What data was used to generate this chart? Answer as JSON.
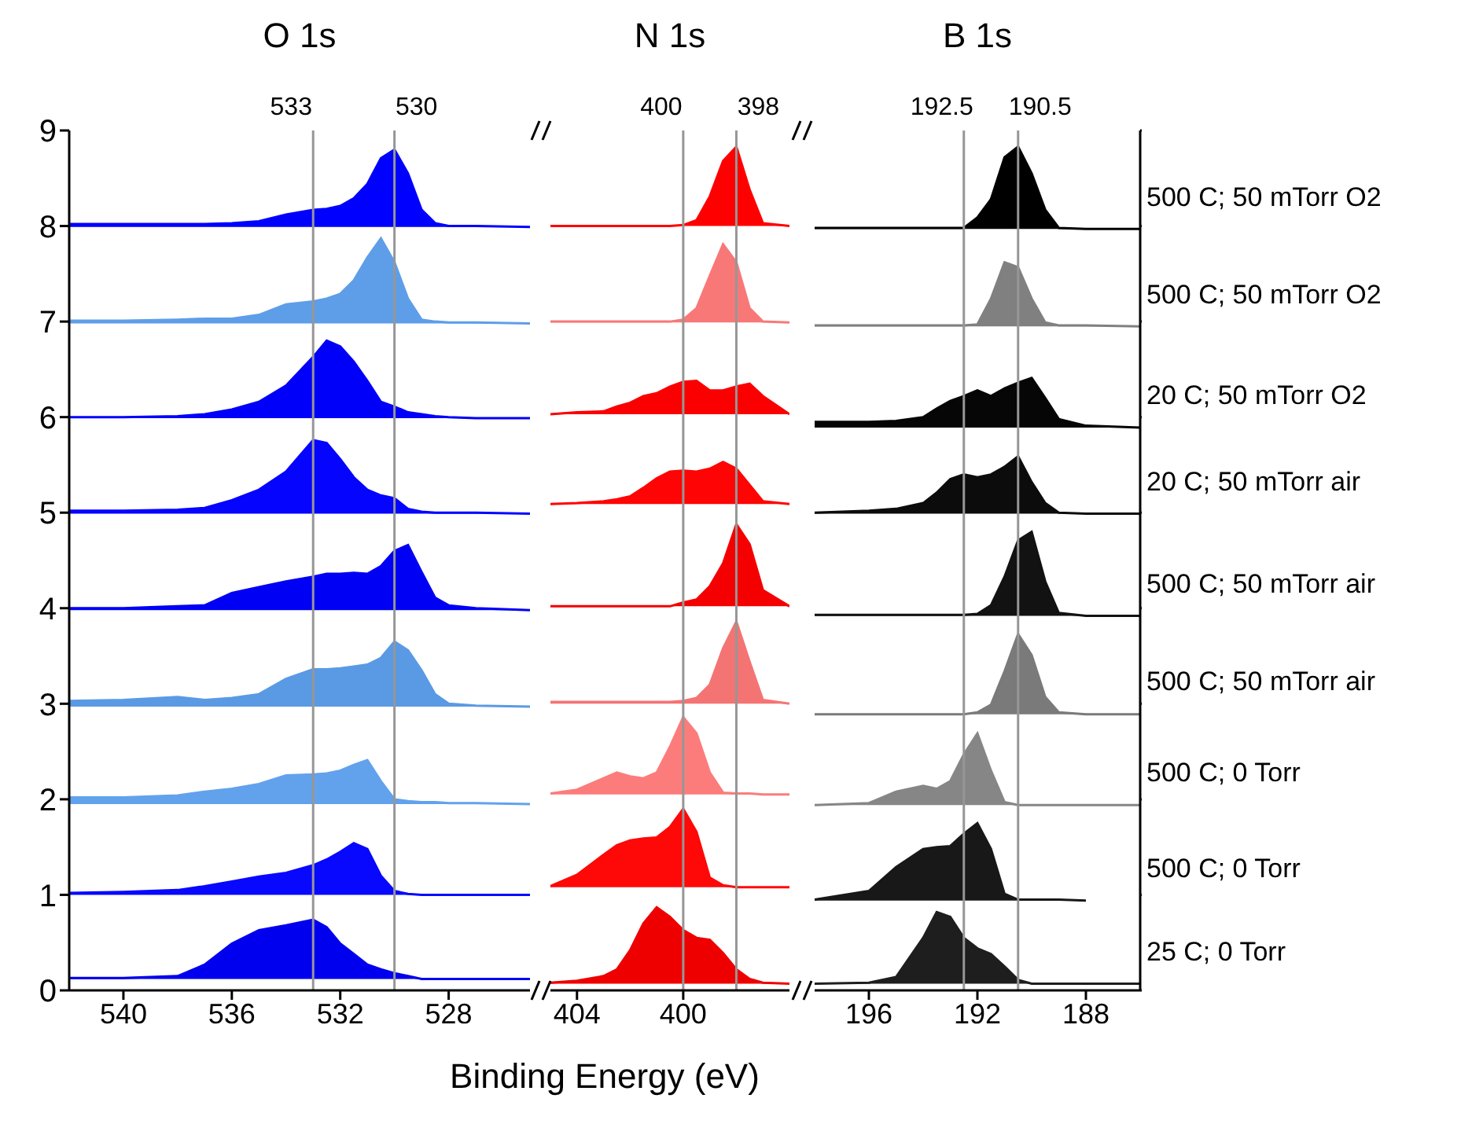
{
  "chart_data": [
    {
      "type": "area",
      "title": "O 1s",
      "xlim": [
        542,
        525
      ],
      "xticks": [
        540,
        536,
        532,
        528
      ],
      "ylim": [
        0,
        9
      ],
      "yticks": [
        0,
        1,
        2,
        3,
        4,
        5,
        6,
        7,
        8,
        9
      ],
      "x": [
        542,
        540,
        538,
        537,
        536,
        535,
        534,
        533,
        532.5,
        532,
        531.5,
        531,
        530.5,
        530,
        529.5,
        529,
        528.5,
        528,
        527,
        525
      ],
      "ref_lines": [
        {
          "axis": "x",
          "value": 533,
          "label": "533",
          "color": "#969696"
        },
        {
          "axis": "x",
          "value": 530,
          "label": "530",
          "color": "#969696"
        }
      ],
      "series": [
        {
          "color": "#0000ff",
          "values": [
            8.02,
            8.02,
            8.02,
            8.02,
            8.03,
            8.05,
            8.12,
            8.17,
            8.18,
            8.21,
            8.29,
            8.44,
            8.71,
            8.8,
            8.55,
            8.17,
            8.03,
            8.0,
            8.0,
            7.99
          ]
        },
        {
          "color": "#5e9ee8",
          "values": [
            7.01,
            7.01,
            7.02,
            7.03,
            7.03,
            7.07,
            7.18,
            7.21,
            7.24,
            7.29,
            7.43,
            7.67,
            7.87,
            7.62,
            7.24,
            7.02,
            7.0,
            6.99,
            6.99,
            6.98
          ]
        },
        {
          "color": "#0000fa",
          "values": [
            6.0,
            6.0,
            6.01,
            6.03,
            6.08,
            6.16,
            6.33,
            6.63,
            6.8,
            6.74,
            6.58,
            6.38,
            6.16,
            6.11,
            6.05,
            6.03,
            6.01,
            6.0,
            5.99,
            5.99
          ]
        },
        {
          "color": "#0404ff",
          "values": [
            5.02,
            5.02,
            5.03,
            5.05,
            5.13,
            5.24,
            5.43,
            5.76,
            5.73,
            5.56,
            5.37,
            5.24,
            5.18,
            5.15,
            5.04,
            5.01,
            5.0,
            5.0,
            5.0,
            4.99
          ]
        },
        {
          "color": "#0000f4",
          "values": [
            4.0,
            4.0,
            4.02,
            4.03,
            4.16,
            4.22,
            4.28,
            4.33,
            4.36,
            4.36,
            4.37,
            4.36,
            4.44,
            4.6,
            4.66,
            4.38,
            4.11,
            4.03,
            4.0,
            3.98
          ]
        },
        {
          "color": "#5a9ae4",
          "values": [
            3.03,
            3.04,
            3.07,
            3.04,
            3.06,
            3.1,
            3.26,
            3.36,
            3.36,
            3.37,
            3.39,
            3.41,
            3.48,
            3.65,
            3.56,
            3.35,
            3.1,
            3.0,
            2.98,
            2.97
          ]
        },
        {
          "color": "#62a2ec",
          "values": [
            2.02,
            2.02,
            2.04,
            2.08,
            2.11,
            2.16,
            2.25,
            2.26,
            2.27,
            2.3,
            2.36,
            2.41,
            2.19,
            2.0,
            1.98,
            1.97,
            1.97,
            1.96,
            1.96,
            1.95
          ]
        },
        {
          "color": "#0808ff",
          "values": [
            1.02,
            1.03,
            1.05,
            1.09,
            1.14,
            1.19,
            1.23,
            1.31,
            1.37,
            1.45,
            1.54,
            1.48,
            1.2,
            1.04,
            1.01,
            1.0,
            1.0,
            1.0,
            1.0,
            1.0
          ]
        },
        {
          "color": "#0000ee",
          "values": [
            0.13,
            0.13,
            0.15,
            0.27,
            0.49,
            0.63,
            0.68,
            0.74,
            0.66,
            0.49,
            0.38,
            0.27,
            0.22,
            0.18,
            0.15,
            0.12,
            0.12,
            0.12,
            0.12,
            0.12
          ]
        }
      ]
    },
    {
      "type": "area",
      "title": "N 1s",
      "xlabel": "Binding Energy (eV)",
      "xlim": [
        405,
        396
      ],
      "xticks": [
        404,
        400
      ],
      "ylim": [
        0,
        9
      ],
      "tick_labels": "x",
      "x": [
        405,
        404,
        403,
        402.5,
        402,
        401.5,
        401,
        400.5,
        400,
        399.5,
        399,
        398.5,
        398,
        397.5,
        397,
        396
      ],
      "ref_lines": [
        {
          "axis": "x",
          "value": 400,
          "label": "400",
          "color": "#969696"
        },
        {
          "axis": "x",
          "value": 398,
          "label": "398",
          "color": "#969696"
        }
      ],
      "series": [
        {
          "color": "#ff0000",
          "values": [
            8.0,
            8.0,
            8.0,
            8.0,
            8.0,
            8.0,
            8.0,
            8.0,
            8.01,
            8.06,
            8.31,
            8.68,
            8.83,
            8.38,
            8.03,
            8.0
          ]
        },
        {
          "color": "#f87878",
          "values": [
            7.0,
            7.0,
            7.0,
            7.0,
            7.0,
            7.0,
            7.0,
            7.0,
            7.02,
            7.14,
            7.48,
            7.81,
            7.62,
            7.14,
            7.0,
            6.99
          ]
        },
        {
          "color": "#fa0000",
          "values": [
            6.03,
            6.05,
            6.06,
            6.11,
            6.15,
            6.22,
            6.25,
            6.32,
            6.37,
            6.38,
            6.28,
            6.28,
            6.32,
            6.35,
            6.22,
            6.03
          ]
        },
        {
          "color": "#ff0404",
          "values": [
            5.09,
            5.1,
            5.12,
            5.14,
            5.17,
            5.26,
            5.36,
            5.43,
            5.44,
            5.43,
            5.46,
            5.53,
            5.46,
            5.29,
            5.12,
            5.09
          ]
        },
        {
          "color": "#f40000",
          "values": [
            4.02,
            4.02,
            4.02,
            4.02,
            4.02,
            4.02,
            4.02,
            4.02,
            4.06,
            4.09,
            4.23,
            4.47,
            4.88,
            4.67,
            4.19,
            4.02
          ]
        },
        {
          "color": "#f47474",
          "values": [
            3.02,
            3.02,
            3.02,
            3.02,
            3.02,
            3.02,
            3.02,
            3.02,
            3.03,
            3.06,
            3.2,
            3.58,
            3.86,
            3.44,
            3.04,
            3.0
          ]
        },
        {
          "color": "#fc7c7c",
          "values": [
            2.06,
            2.1,
            2.22,
            2.28,
            2.24,
            2.22,
            2.28,
            2.55,
            2.86,
            2.69,
            2.28,
            2.07,
            2.06,
            2.06,
            2.05,
            2.05
          ]
        },
        {
          "color": "#ff0808",
          "values": [
            1.09,
            1.21,
            1.42,
            1.52,
            1.57,
            1.59,
            1.6,
            1.71,
            1.9,
            1.66,
            1.18,
            1.1,
            1.08,
            1.08,
            1.08,
            1.08
          ]
        },
        {
          "color": "#ee0000",
          "values": [
            0.08,
            0.1,
            0.15,
            0.22,
            0.42,
            0.7,
            0.87,
            0.77,
            0.63,
            0.55,
            0.53,
            0.39,
            0.22,
            0.12,
            0.08,
            0.07
          ]
        }
      ]
    },
    {
      "type": "area",
      "title": "B 1s",
      "xlim": [
        198,
        186
      ],
      "xticks": [
        196,
        192,
        188
      ],
      "ylim": [
        0,
        9
      ],
      "yticks": [
        0,
        1,
        2,
        3,
        4,
        5,
        6,
        7,
        8,
        9
      ],
      "tick_labels": "x",
      "x": [
        198,
        196,
        195,
        194,
        193.5,
        193,
        192.5,
        192,
        191.5,
        191,
        190.5,
        190,
        189.5,
        189,
        188,
        186
      ],
      "ref_lines": [
        {
          "axis": "x",
          "value": 192.5,
          "label": "192.5",
          "color": "#969696"
        },
        {
          "axis": "x",
          "value": 190.5,
          "label": "190.5",
          "color": "#969696"
        }
      ],
      "series": [
        {
          "name": "500 C; 50 mTorr O2",
          "color": "#000000",
          "values": [
            7.98,
            7.98,
            7.98,
            7.98,
            7.98,
            7.98,
            7.98,
            8.09,
            8.28,
            8.72,
            8.83,
            8.55,
            8.17,
            7.98,
            7.97,
            7.97
          ]
        },
        {
          "name": "500 C; 50 mTorr O2",
          "color": "#808080",
          "values": [
            6.96,
            6.96,
            6.96,
            6.96,
            6.96,
            6.96,
            6.96,
            6.97,
            7.24,
            7.62,
            7.57,
            7.24,
            6.99,
            6.96,
            6.96,
            6.95
          ]
        },
        {
          "name": "20 C; 50 mTorr O2",
          "color": "#060606",
          "values": [
            5.95,
            5.95,
            5.96,
            6.0,
            6.09,
            6.17,
            6.22,
            6.28,
            6.22,
            6.3,
            6.36,
            6.41,
            6.2,
            5.98,
            5.91,
            5.89
          ]
        },
        {
          "name": "20 C; 50 mTorr air",
          "color": "#0c0c0c",
          "values": [
            5.0,
            5.02,
            5.04,
            5.1,
            5.21,
            5.35,
            5.4,
            5.37,
            5.4,
            5.48,
            5.59,
            5.32,
            5.1,
            5.0,
            4.99,
            4.99
          ]
        },
        {
          "name": "500 C; 50 mTorr air",
          "color": "#121212",
          "values": [
            3.93,
            3.93,
            3.93,
            3.93,
            3.93,
            3.93,
            3.93,
            3.94,
            4.03,
            4.33,
            4.71,
            4.8,
            4.28,
            3.95,
            3.92,
            3.92
          ]
        },
        {
          "name": "500 C; 50 mTorr air",
          "color": "#7a7a7a",
          "values": [
            2.89,
            2.89,
            2.89,
            2.89,
            2.89,
            2.89,
            2.89,
            2.91,
            2.99,
            3.34,
            3.73,
            3.51,
            3.07,
            2.91,
            2.89,
            2.89
          ]
        },
        {
          "name": "500 C; 0 Torr",
          "color": "#868686",
          "values": [
            1.94,
            1.96,
            2.08,
            2.14,
            2.11,
            2.19,
            2.47,
            2.69,
            2.3,
            1.97,
            1.94,
            1.94,
            1.94,
            1.94,
            1.94,
            1.94
          ]
        },
        {
          "name": "500 C; 0 Torr",
          "color": "#181818",
          "values": [
            0.95,
            1.04,
            1.29,
            1.48,
            1.5,
            1.51,
            1.64,
            1.75,
            1.48,
            1.01,
            0.95,
            0.95,
            0.95,
            0.95,
            0.94,
            null
          ]
        },
        {
          "name": "25 C; 0 Torr",
          "color": "#1e1e1e",
          "values": [
            0.07,
            0.08,
            0.14,
            0.55,
            0.82,
            0.77,
            0.55,
            0.44,
            0.38,
            0.25,
            0.11,
            0.07,
            0.07,
            0.07,
            0.07,
            0.07
          ]
        }
      ]
    }
  ]
}
